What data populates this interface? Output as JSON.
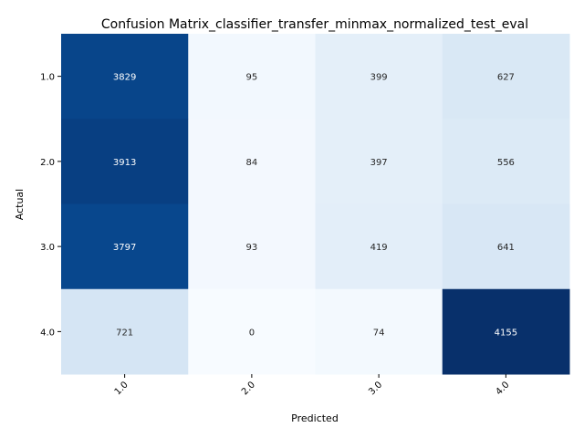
{
  "chart_data": {
    "type": "heatmap",
    "title": "Confusion Matrix_classifier_transfer_minmax_normalized_test_eval",
    "xlabel": "Predicted",
    "ylabel": "Actual",
    "x_categories": [
      "1.0",
      "2.0",
      "3.0",
      "4.0"
    ],
    "y_categories": [
      "1.0",
      "2.0",
      "3.0",
      "4.0"
    ],
    "values": [
      [
        3829,
        95,
        399,
        627
      ],
      [
        3913,
        84,
        397,
        556
      ],
      [
        3797,
        93,
        419,
        641
      ],
      [
        721,
        0,
        74,
        4155
      ]
    ],
    "colormap": "Blues",
    "value_range": [
      0,
      4155
    ],
    "colorbar": false,
    "grid": false
  }
}
